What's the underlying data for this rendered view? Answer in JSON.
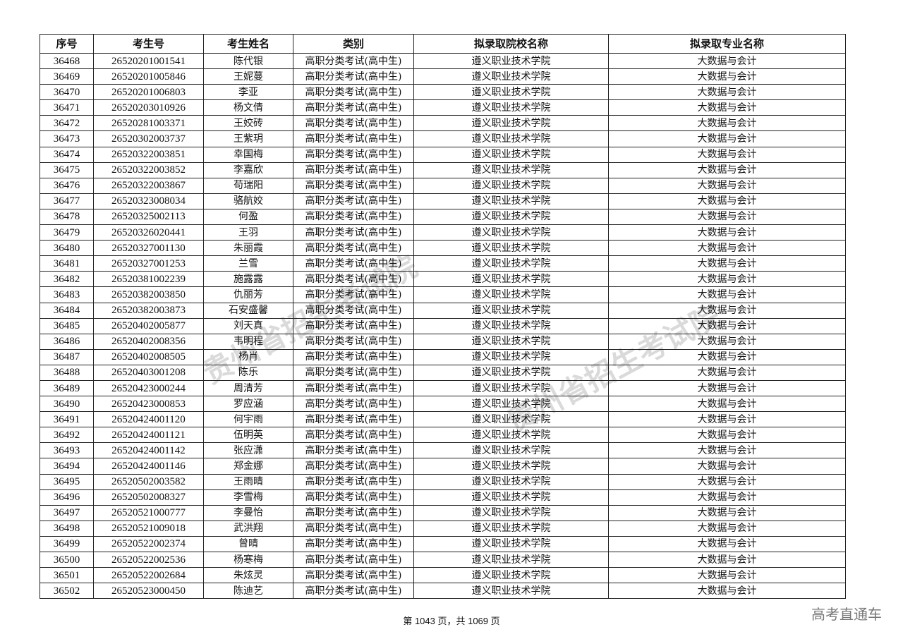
{
  "table": {
    "headers": [
      "序号",
      "考生号",
      "考生姓名",
      "类别",
      "拟录取院校名称",
      "拟录取专业名称"
    ],
    "rows": [
      [
        "36468",
        "26520201001541",
        "陈代银",
        "高职分类考试(高中生)",
        "遵义职业技术学院",
        "大数据与会计"
      ],
      [
        "36469",
        "26520201005846",
        "王妮蔓",
        "高职分类考试(高中生)",
        "遵义职业技术学院",
        "大数据与会计"
      ],
      [
        "36470",
        "26520201006803",
        "李亚",
        "高职分类考试(高中生)",
        "遵义职业技术学院",
        "大数据与会计"
      ],
      [
        "36471",
        "26520203010926",
        "杨文倩",
        "高职分类考试(高中生)",
        "遵义职业技术学院",
        "大数据与会计"
      ],
      [
        "36472",
        "26520281003371",
        "王姣砖",
        "高职分类考试(高中生)",
        "遵义职业技术学院",
        "大数据与会计"
      ],
      [
        "36473",
        "26520302003737",
        "王紫玥",
        "高职分类考试(高中生)",
        "遵义职业技术学院",
        "大数据与会计"
      ],
      [
        "36474",
        "26520322003851",
        "幸国梅",
        "高职分类考试(高中生)",
        "遵义职业技术学院",
        "大数据与会计"
      ],
      [
        "36475",
        "26520322003852",
        "李嘉欣",
        "高职分类考试(高中生)",
        "遵义职业技术学院",
        "大数据与会计"
      ],
      [
        "36476",
        "26520322003867",
        "苟瑞阳",
        "高职分类考试(高中生)",
        "遵义职业技术学院",
        "大数据与会计"
      ],
      [
        "36477",
        "26520323008034",
        "骆航姣",
        "高职分类考试(高中生)",
        "遵义职业技术学院",
        "大数据与会计"
      ],
      [
        "36478",
        "26520325002113",
        "何盈",
        "高职分类考试(高中生)",
        "遵义职业技术学院",
        "大数据与会计"
      ],
      [
        "36479",
        "26520326020441",
        "王羽",
        "高职分类考试(高中生)",
        "遵义职业技术学院",
        "大数据与会计"
      ],
      [
        "36480",
        "26520327001130",
        "朱丽霞",
        "高职分类考试(高中生)",
        "遵义职业技术学院",
        "大数据与会计"
      ],
      [
        "36481",
        "26520327001253",
        "兰雪",
        "高职分类考试(高中生)",
        "遵义职业技术学院",
        "大数据与会计"
      ],
      [
        "36482",
        "26520381002239",
        "施露露",
        "高职分类考试(高中生)",
        "遵义职业技术学院",
        "大数据与会计"
      ],
      [
        "36483",
        "26520382003850",
        "仇丽芳",
        "高职分类考试(高中生)",
        "遵义职业技术学院",
        "大数据与会计"
      ],
      [
        "36484",
        "26520382003873",
        "石安盛馨",
        "高职分类考试(高中生)",
        "遵义职业技术学院",
        "大数据与会计"
      ],
      [
        "36485",
        "26520402005877",
        "刘天真",
        "高职分类考试(高中生)",
        "遵义职业技术学院",
        "大数据与会计"
      ],
      [
        "36486",
        "26520402008356",
        "韦明程",
        "高职分类考试(高中生)",
        "遵义职业技术学院",
        "大数据与会计"
      ],
      [
        "36487",
        "26520402008505",
        "杨肖",
        "高职分类考试(高中生)",
        "遵义职业技术学院",
        "大数据与会计"
      ],
      [
        "36488",
        "26520403001208",
        "陈乐",
        "高职分类考试(高中生)",
        "遵义职业技术学院",
        "大数据与会计"
      ],
      [
        "36489",
        "26520423000244",
        "周清芳",
        "高职分类考试(高中生)",
        "遵义职业技术学院",
        "大数据与会计"
      ],
      [
        "36490",
        "26520423000853",
        "罗应涵",
        "高职分类考试(高中生)",
        "遵义职业技术学院",
        "大数据与会计"
      ],
      [
        "36491",
        "26520424001120",
        "何宇雨",
        "高职分类考试(高中生)",
        "遵义职业技术学院",
        "大数据与会计"
      ],
      [
        "36492",
        "26520424001121",
        "伍明英",
        "高职分类考试(高中生)",
        "遵义职业技术学院",
        "大数据与会计"
      ],
      [
        "36493",
        "26520424001142",
        "张应潇",
        "高职分类考试(高中生)",
        "遵义职业技术学院",
        "大数据与会计"
      ],
      [
        "36494",
        "26520424001146",
        "郑金娜",
        "高职分类考试(高中生)",
        "遵义职业技术学院",
        "大数据与会计"
      ],
      [
        "36495",
        "26520502003582",
        "王雨晴",
        "高职分类考试(高中生)",
        "遵义职业技术学院",
        "大数据与会计"
      ],
      [
        "36496",
        "26520502008327",
        "李雪梅",
        "高职分类考试(高中生)",
        "遵义职业技术学院",
        "大数据与会计"
      ],
      [
        "36497",
        "26520521000777",
        "李曼怡",
        "高职分类考试(高中生)",
        "遵义职业技术学院",
        "大数据与会计"
      ],
      [
        "36498",
        "26520521009018",
        "武洪翔",
        "高职分类考试(高中生)",
        "遵义职业技术学院",
        "大数据与会计"
      ],
      [
        "36499",
        "26520522002374",
        "曾晴",
        "高职分类考试(高中生)",
        "遵义职业技术学院",
        "大数据与会计"
      ],
      [
        "36500",
        "26520522002536",
        "杨寒梅",
        "高职分类考试(高中生)",
        "遵义职业技术学院",
        "大数据与会计"
      ],
      [
        "36501",
        "26520522002684",
        "朱炫灵",
        "高职分类考试(高中生)",
        "遵义职业技术学院",
        "大数据与会计"
      ],
      [
        "36502",
        "26520523000450",
        "陈迪艺",
        "高职分类考试(高中生)",
        "遵义职业技术学院",
        "大数据与会计"
      ]
    ]
  },
  "footer": {
    "page_info": "第 1043 页，共 1069 页"
  },
  "brand": "高考直通车",
  "watermark": "贵州省招生考试院"
}
